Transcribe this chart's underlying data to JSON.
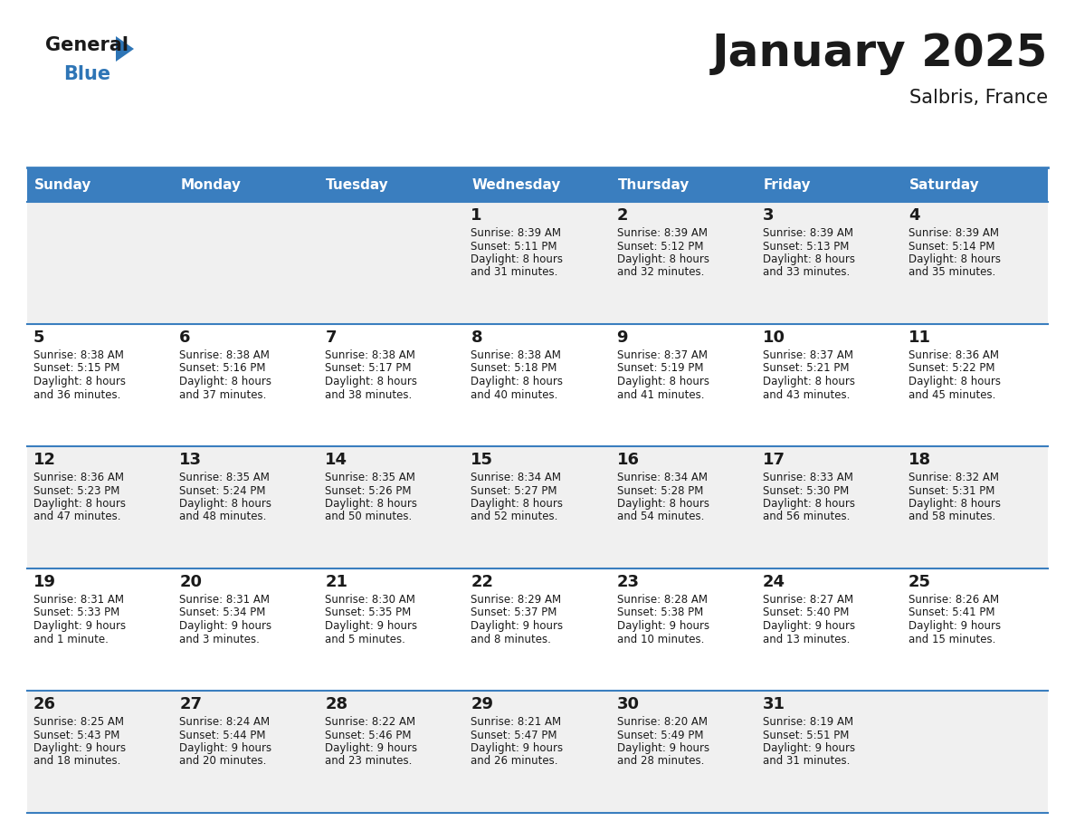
{
  "title": "January 2025",
  "subtitle": "Salbris, France",
  "header_bg": "#3a7ebf",
  "header_text_color": "#ffffff",
  "row_bg_odd": "#f0f0f0",
  "row_bg_even": "#ffffff",
  "day_names": [
    "Sunday",
    "Monday",
    "Tuesday",
    "Wednesday",
    "Thursday",
    "Friday",
    "Saturday"
  ],
  "days": [
    {
      "day": 1,
      "col": 3,
      "row": 0,
      "sunrise": "8:39 AM",
      "sunset": "5:11 PM",
      "daylight": "8 hours and 31 minutes."
    },
    {
      "day": 2,
      "col": 4,
      "row": 0,
      "sunrise": "8:39 AM",
      "sunset": "5:12 PM",
      "daylight": "8 hours and 32 minutes."
    },
    {
      "day": 3,
      "col": 5,
      "row": 0,
      "sunrise": "8:39 AM",
      "sunset": "5:13 PM",
      "daylight": "8 hours and 33 minutes."
    },
    {
      "day": 4,
      "col": 6,
      "row": 0,
      "sunrise": "8:39 AM",
      "sunset": "5:14 PM",
      "daylight": "8 hours and 35 minutes."
    },
    {
      "day": 5,
      "col": 0,
      "row": 1,
      "sunrise": "8:38 AM",
      "sunset": "5:15 PM",
      "daylight": "8 hours and 36 minutes."
    },
    {
      "day": 6,
      "col": 1,
      "row": 1,
      "sunrise": "8:38 AM",
      "sunset": "5:16 PM",
      "daylight": "8 hours and 37 minutes."
    },
    {
      "day": 7,
      "col": 2,
      "row": 1,
      "sunrise": "8:38 AM",
      "sunset": "5:17 PM",
      "daylight": "8 hours and 38 minutes."
    },
    {
      "day": 8,
      "col": 3,
      "row": 1,
      "sunrise": "8:38 AM",
      "sunset": "5:18 PM",
      "daylight": "8 hours and 40 minutes."
    },
    {
      "day": 9,
      "col": 4,
      "row": 1,
      "sunrise": "8:37 AM",
      "sunset": "5:19 PM",
      "daylight": "8 hours and 41 minutes."
    },
    {
      "day": 10,
      "col": 5,
      "row": 1,
      "sunrise": "8:37 AM",
      "sunset": "5:21 PM",
      "daylight": "8 hours and 43 minutes."
    },
    {
      "day": 11,
      "col": 6,
      "row": 1,
      "sunrise": "8:36 AM",
      "sunset": "5:22 PM",
      "daylight": "8 hours and 45 minutes."
    },
    {
      "day": 12,
      "col": 0,
      "row": 2,
      "sunrise": "8:36 AM",
      "sunset": "5:23 PM",
      "daylight": "8 hours and 47 minutes."
    },
    {
      "day": 13,
      "col": 1,
      "row": 2,
      "sunrise": "8:35 AM",
      "sunset": "5:24 PM",
      "daylight": "8 hours and 48 minutes."
    },
    {
      "day": 14,
      "col": 2,
      "row": 2,
      "sunrise": "8:35 AM",
      "sunset": "5:26 PM",
      "daylight": "8 hours and 50 minutes."
    },
    {
      "day": 15,
      "col": 3,
      "row": 2,
      "sunrise": "8:34 AM",
      "sunset": "5:27 PM",
      "daylight": "8 hours and 52 minutes."
    },
    {
      "day": 16,
      "col": 4,
      "row": 2,
      "sunrise": "8:34 AM",
      "sunset": "5:28 PM",
      "daylight": "8 hours and 54 minutes."
    },
    {
      "day": 17,
      "col": 5,
      "row": 2,
      "sunrise": "8:33 AM",
      "sunset": "5:30 PM",
      "daylight": "8 hours and 56 minutes."
    },
    {
      "day": 18,
      "col": 6,
      "row": 2,
      "sunrise": "8:32 AM",
      "sunset": "5:31 PM",
      "daylight": "8 hours and 58 minutes."
    },
    {
      "day": 19,
      "col": 0,
      "row": 3,
      "sunrise": "8:31 AM",
      "sunset": "5:33 PM",
      "daylight": "9 hours and 1 minute."
    },
    {
      "day": 20,
      "col": 1,
      "row": 3,
      "sunrise": "8:31 AM",
      "sunset": "5:34 PM",
      "daylight": "9 hours and 3 minutes."
    },
    {
      "day": 21,
      "col": 2,
      "row": 3,
      "sunrise": "8:30 AM",
      "sunset": "5:35 PM",
      "daylight": "9 hours and 5 minutes."
    },
    {
      "day": 22,
      "col": 3,
      "row": 3,
      "sunrise": "8:29 AM",
      "sunset": "5:37 PM",
      "daylight": "9 hours and 8 minutes."
    },
    {
      "day": 23,
      "col": 4,
      "row": 3,
      "sunrise": "8:28 AM",
      "sunset": "5:38 PM",
      "daylight": "9 hours and 10 minutes."
    },
    {
      "day": 24,
      "col": 5,
      "row": 3,
      "sunrise": "8:27 AM",
      "sunset": "5:40 PM",
      "daylight": "9 hours and 13 minutes."
    },
    {
      "day": 25,
      "col": 6,
      "row": 3,
      "sunrise": "8:26 AM",
      "sunset": "5:41 PM",
      "daylight": "9 hours and 15 minutes."
    },
    {
      "day": 26,
      "col": 0,
      "row": 4,
      "sunrise": "8:25 AM",
      "sunset": "5:43 PM",
      "daylight": "9 hours and 18 minutes."
    },
    {
      "day": 27,
      "col": 1,
      "row": 4,
      "sunrise": "8:24 AM",
      "sunset": "5:44 PM",
      "daylight": "9 hours and 20 minutes."
    },
    {
      "day": 28,
      "col": 2,
      "row": 4,
      "sunrise": "8:22 AM",
      "sunset": "5:46 PM",
      "daylight": "9 hours and 23 minutes."
    },
    {
      "day": 29,
      "col": 3,
      "row": 4,
      "sunrise": "8:21 AM",
      "sunset": "5:47 PM",
      "daylight": "9 hours and 26 minutes."
    },
    {
      "day": 30,
      "col": 4,
      "row": 4,
      "sunrise": "8:20 AM",
      "sunset": "5:49 PM",
      "daylight": "9 hours and 28 minutes."
    },
    {
      "day": 31,
      "col": 5,
      "row": 4,
      "sunrise": "8:19 AM",
      "sunset": "5:51 PM",
      "daylight": "9 hours and 31 minutes."
    }
  ],
  "num_rows": 5,
  "num_cols": 7,
  "title_fontsize": 36,
  "subtitle_fontsize": 15,
  "header_fontsize": 11,
  "day_num_fontsize": 13,
  "cell_text_fontsize": 8.5,
  "line_color": "#3a7ebf",
  "text_color": "#1a1a1a",
  "logo_general_color": "#1a1a1a",
  "logo_blue_color": "#2e75b6",
  "logo_triangle_color": "#2e75b6"
}
